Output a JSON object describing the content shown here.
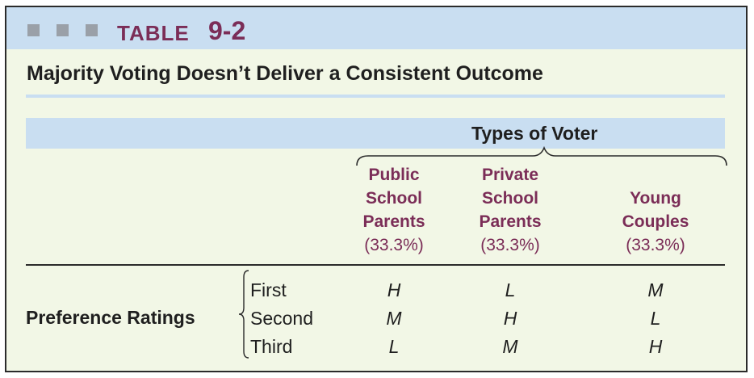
{
  "header": {
    "table_word": "TABLE",
    "table_number": "9-2",
    "colors": {
      "band": "#c9def1",
      "accent": "#7b2d57",
      "squares": "#9aa0a8",
      "panel": "#f2f7e6"
    }
  },
  "subtitle": "Majority Voting Doesn’t Deliver a Consistent Outcome",
  "spanner": "Types of Voter",
  "columns": [
    {
      "lines": [
        "Public",
        "School",
        "Parents"
      ],
      "share": "(33.3%)"
    },
    {
      "lines": [
        "Private",
        "School",
        "Parents"
      ],
      "share": "(33.3%)"
    },
    {
      "lines": [
        "Young",
        "Couples"
      ],
      "share": "(33.3%)"
    }
  ],
  "row_group_label": "Preference Ratings",
  "ranks": [
    "First",
    "Second",
    "Third"
  ],
  "cells": [
    [
      "H",
      "L",
      "M"
    ],
    [
      "M",
      "H",
      "L"
    ],
    [
      "L",
      "M",
      "H"
    ]
  ]
}
